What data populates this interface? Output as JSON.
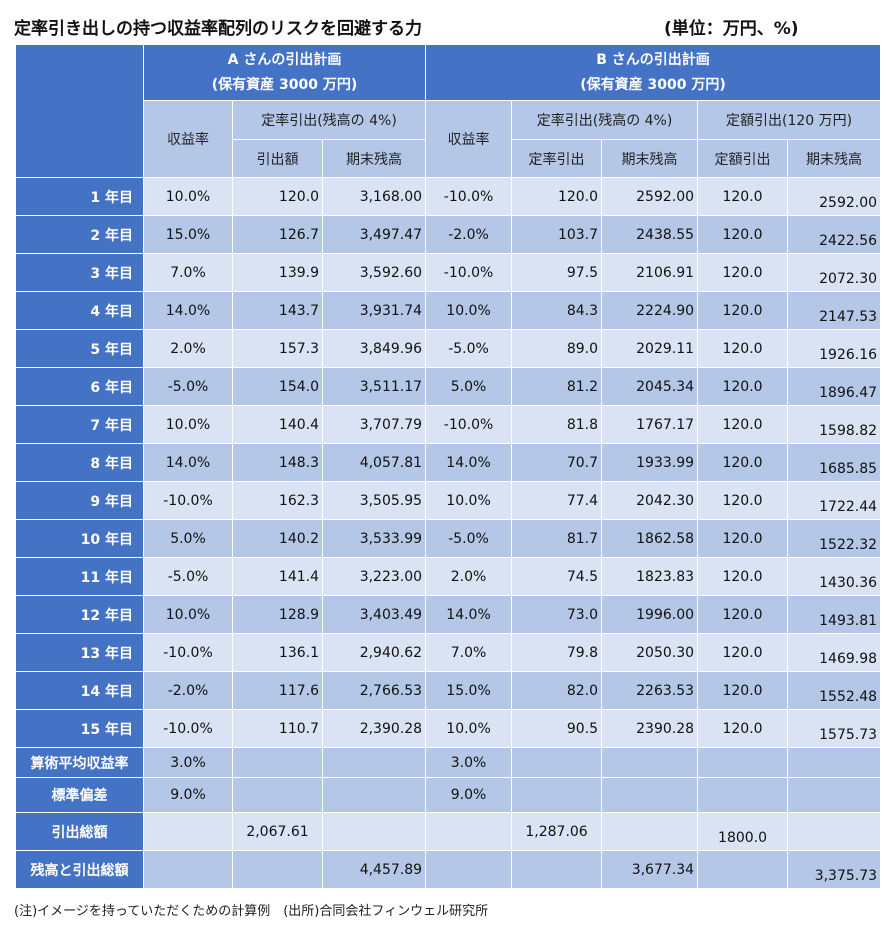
{
  "title": "定率引き出しの持つ収益率配列のリスクを回避する力",
  "unit": "(単位：万円、%)",
  "header": {
    "planA_line1": "A さんの引出計画",
    "planA_line2": "(保有資産 3000 万円)",
    "planB_line1": "B さんの引出計画",
    "planB_line2": "(保有資産 3000 万円)",
    "return_rate": "収益率",
    "fixed_rate": "定率引出(残高の 4%)",
    "fixed_amount": "定額引出(120 万円)",
    "a_withdrawal": "引出額",
    "a_balance": "期末残高",
    "b_rate_withdrawal": "定率引出",
    "b_rate_balance": "期末残高",
    "b_amount_withdrawal": "定額引出",
    "b_amount_balance": "期末残高"
  },
  "rows": [
    {
      "year": "1 年目",
      "a_ret": "10.0%",
      "a_wd": "120.0",
      "a_bal": "3,168.00",
      "b_ret": "-10.0%",
      "b_rwd": "120.0",
      "b_rbal": "2592.00",
      "b_fwd": "120.0",
      "b_fbal": "2592.00"
    },
    {
      "year": "2 年目",
      "a_ret": "15.0%",
      "a_wd": "126.7",
      "a_bal": "3,497.47",
      "b_ret": "-2.0%",
      "b_rwd": "103.7",
      "b_rbal": "2438.55",
      "b_fwd": "120.0",
      "b_fbal": "2422.56"
    },
    {
      "year": "3 年目",
      "a_ret": "7.0%",
      "a_wd": "139.9",
      "a_bal": "3,592.60",
      "b_ret": "-10.0%",
      "b_rwd": "97.5",
      "b_rbal": "2106.91",
      "b_fwd": "120.0",
      "b_fbal": "2072.30"
    },
    {
      "year": "4 年目",
      "a_ret": "14.0%",
      "a_wd": "143.7",
      "a_bal": "3,931.74",
      "b_ret": "10.0%",
      "b_rwd": "84.3",
      "b_rbal": "2224.90",
      "b_fwd": "120.0",
      "b_fbal": "2147.53"
    },
    {
      "year": "5 年目",
      "a_ret": "2.0%",
      "a_wd": "157.3",
      "a_bal": "3,849.96",
      "b_ret": "-5.0%",
      "b_rwd": "89.0",
      "b_rbal": "2029.11",
      "b_fwd": "120.0",
      "b_fbal": "1926.16"
    },
    {
      "year": "6 年目",
      "a_ret": "-5.0%",
      "a_wd": "154.0",
      "a_bal": "3,511.17",
      "b_ret": "5.0%",
      "b_rwd": "81.2",
      "b_rbal": "2045.34",
      "b_fwd": "120.0",
      "b_fbal": "1896.47"
    },
    {
      "year": "7 年目",
      "a_ret": "10.0%",
      "a_wd": "140.4",
      "a_bal": "3,707.79",
      "b_ret": "-10.0%",
      "b_rwd": "81.8",
      "b_rbal": "1767.17",
      "b_fwd": "120.0",
      "b_fbal": "1598.82"
    },
    {
      "year": "8 年目",
      "a_ret": "14.0%",
      "a_wd": "148.3",
      "a_bal": "4,057.81",
      "b_ret": "14.0%",
      "b_rwd": "70.7",
      "b_rbal": "1933.99",
      "b_fwd": "120.0",
      "b_fbal": "1685.85"
    },
    {
      "year": "9 年目",
      "a_ret": "-10.0%",
      "a_wd": "162.3",
      "a_bal": "3,505.95",
      "b_ret": "10.0%",
      "b_rwd": "77.4",
      "b_rbal": "2042.30",
      "b_fwd": "120.0",
      "b_fbal": "1722.44"
    },
    {
      "year": "10 年目",
      "a_ret": "5.0%",
      "a_wd": "140.2",
      "a_bal": "3,533.99",
      "b_ret": "-5.0%",
      "b_rwd": "81.7",
      "b_rbal": "1862.58",
      "b_fwd": "120.0",
      "b_fbal": "1522.32"
    },
    {
      "year": "11 年目",
      "a_ret": "-5.0%",
      "a_wd": "141.4",
      "a_bal": "3,223.00",
      "b_ret": "2.0%",
      "b_rwd": "74.5",
      "b_rbal": "1823.83",
      "b_fwd": "120.0",
      "b_fbal": "1430.36"
    },
    {
      "year": "12 年目",
      "a_ret": "10.0%",
      "a_wd": "128.9",
      "a_bal": "3,403.49",
      "b_ret": "14.0%",
      "b_rwd": "73.0",
      "b_rbal": "1996.00",
      "b_fwd": "120.0",
      "b_fbal": "1493.81"
    },
    {
      "year": "13 年目",
      "a_ret": "-10.0%",
      "a_wd": "136.1",
      "a_bal": "2,940.62",
      "b_ret": "7.0%",
      "b_rwd": "79.8",
      "b_rbal": "2050.30",
      "b_fwd": "120.0",
      "b_fbal": "1469.98"
    },
    {
      "year": "14 年目",
      "a_ret": "-2.0%",
      "a_wd": "117.6",
      "a_bal": "2,766.53",
      "b_ret": "15.0%",
      "b_rwd": "82.0",
      "b_rbal": "2263.53",
      "b_fwd": "120.0",
      "b_fbal": "1552.48"
    },
    {
      "year": "15 年目",
      "a_ret": "-10.0%",
      "a_wd": "110.7",
      "a_bal": "2,390.28",
      "b_ret": "10.0%",
      "b_rwd": "90.5",
      "b_rbal": "2390.28",
      "b_fwd": "120.0",
      "b_fbal": "1575.73"
    }
  ],
  "summary": {
    "mean_label": "算術平均収益率",
    "mean_a": "3.0%",
    "mean_b": "3.0%",
    "std_label": "標準偏差",
    "std_a": "9.0%",
    "std_b": "9.0%",
    "total_label": "引出総額",
    "total_a": "2,067.61",
    "total_b_rate": "1,287.06",
    "total_b_amount": "1800.0",
    "bal_label": "残高と引出総額",
    "bal_a": "4,457.89",
    "bal_b_rate": "3,677.34",
    "bal_b_amount": "3,375.73"
  },
  "footnote": "(注)イメージを持っていただくための計算例　(出所)合同会社フィンウェル研究所"
}
